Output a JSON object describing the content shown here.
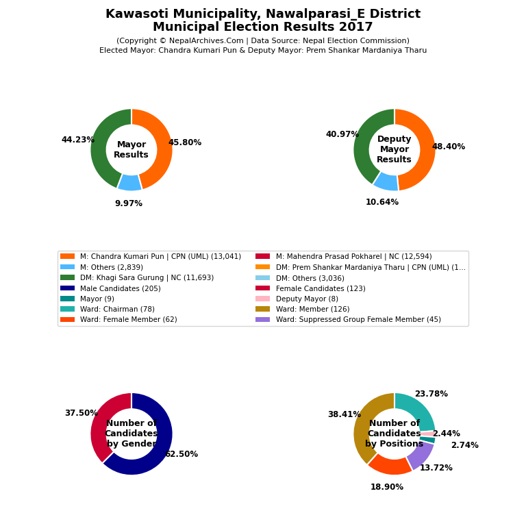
{
  "title": "Kawasoti Municipality, Nawalparasi_E District\nMunicipal Election Results 2017",
  "subtitle": "(Copyright © NepalArchives.Com | Data Source: Nepal Election Commission)\nElected Mayor: Chandra Kumari Pun & Deputy Mayor: Prem Shankar Mardaniya Tharu",
  "chart_data": [
    {
      "type": "pie",
      "center_label": "Mayor\nResults",
      "values": [
        45.8,
        9.97,
        44.23
      ],
      "value_labels": [
        "45.80%",
        "9.97%",
        "44.23%"
      ],
      "colors": [
        "#FF6600",
        "#4DB8FF",
        "#2E7D32"
      ]
    },
    {
      "type": "pie",
      "center_label": "Deputy\nMayor\nResults",
      "values": [
        48.4,
        10.64,
        40.97
      ],
      "value_labels": [
        "48.40%",
        "10.64%",
        "40.97%"
      ],
      "colors": [
        "#FF6600",
        "#4DB8FF",
        "#2E7D32"
      ]
    },
    {
      "type": "pie",
      "center_label": "Number of\nCandidates\nby Gender",
      "values": [
        62.5,
        37.5
      ],
      "value_labels": [
        "62.50%",
        "37.50%"
      ],
      "colors": [
        "#00008B",
        "#CC0033"
      ]
    },
    {
      "type": "pie",
      "center_label": "Number of\nCandidates\nby Positions",
      "values": [
        23.78,
        2.44,
        2.74,
        13.72,
        18.9,
        38.41
      ],
      "value_labels": [
        "23.78%",
        "2.44%",
        "2.74%",
        "13.72%",
        "18.90%",
        "38.41%"
      ],
      "colors": [
        "#20B2AA",
        "#FFB6C1",
        "#008B8B",
        "#9370DB",
        "#FF4500",
        "#B8860B"
      ]
    }
  ],
  "legend_entries": [
    {
      "label": "M: Chandra Kumari Pun | CPN (UML) (13,041)",
      "color": "#FF6600"
    },
    {
      "label": "M: Others (2,839)",
      "color": "#4DB8FF"
    },
    {
      "label": "DM: Khagi Sara Gurung | NC (11,693)",
      "color": "#2E7D32"
    },
    {
      "label": "Male Candidates (205)",
      "color": "#00008B"
    },
    {
      "label": "Mayor (9)",
      "color": "#008B8B"
    },
    {
      "label": "Ward: Chairman (78)",
      "color": "#20B2AA"
    },
    {
      "label": "Ward: Female Member (62)",
      "color": "#FF4500"
    },
    {
      "label": "M: Mahendra Prasad Pokharel | NC (12,594)",
      "color": "#CC0033"
    },
    {
      "label": "DM: Prem Shankar Mardaniya Tharu | CPN (UML) (1…",
      "color": "#FF8C00"
    },
    {
      "label": "DM: Others (3,036)",
      "color": "#87CEEB"
    },
    {
      "label": "Female Candidates (123)",
      "color": "#CC0033"
    },
    {
      "label": "Deputy Mayor (8)",
      "color": "#FFB6C1"
    },
    {
      "label": "Ward: Member (126)",
      "color": "#B8860B"
    },
    {
      "label": "Ward: Suppressed Group Female Member (45)",
      "color": "#9370DB"
    }
  ]
}
